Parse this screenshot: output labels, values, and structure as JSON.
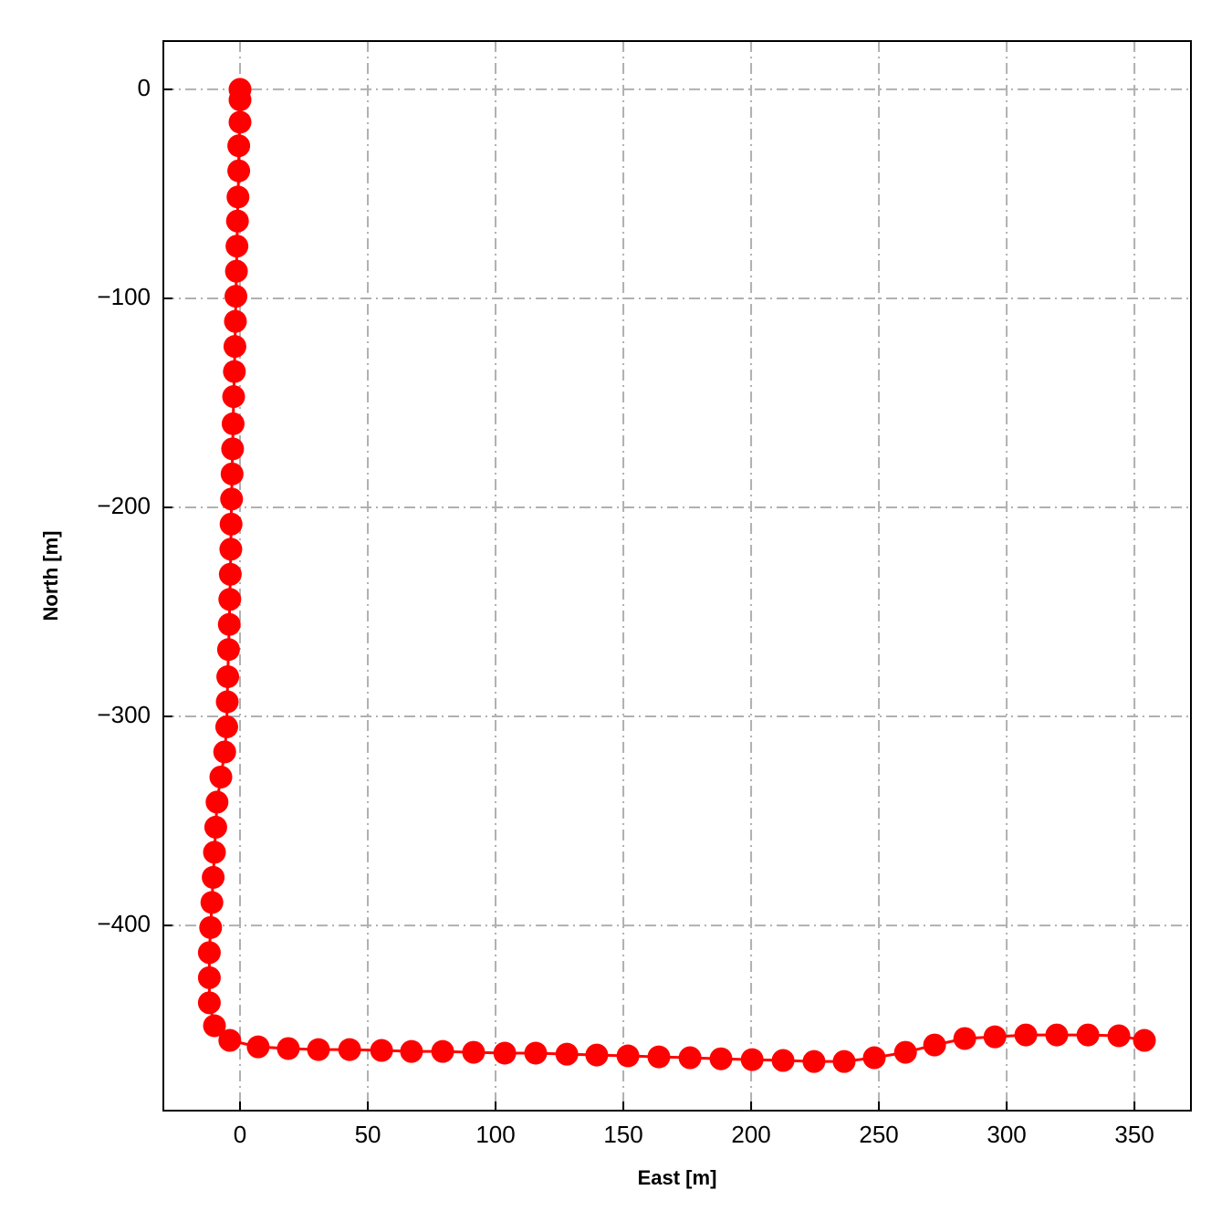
{
  "chart_data": {
    "type": "line",
    "xlabel": "East [m]",
    "ylabel": "North [m]",
    "color": "#ff0000",
    "markers": true,
    "grid": true,
    "x": [
      0,
      0,
      0,
      -0.5,
      -0.5,
      -0.8,
      -1,
      -1.2,
      -1.4,
      -1.6,
      -1.8,
      -2,
      -2.2,
      -2.5,
      -2.7,
      -2.9,
      -3.1,
      -3.3,
      -3.5,
      -3.6,
      -3.8,
      -4,
      -4.2,
      -4.5,
      -4.8,
      -5,
      -5.2,
      -6,
      -7.5,
      -9,
      -9.5,
      -10,
      -10.5,
      -11,
      -11.5,
      -12,
      -12,
      -12,
      -10,
      -4,
      7.1,
      18.9,
      30.7,
      42.9,
      55.4,
      67.1,
      79.3,
      91.4,
      103.6,
      115.7,
      127.9,
      139.6,
      151.8,
      163.9,
      176.1,
      188.2,
      200.4,
      212.5,
      224.6,
      236.4,
      248.2,
      260.4,
      271.8,
      283.6,
      295.4,
      307.5,
      319.6,
      331.8,
      343.9,
      353.9
    ],
    "values": [
      0,
      -5,
      -15.7,
      -27,
      -39,
      -51.5,
      -63,
      -75,
      -87,
      -99,
      -111,
      -123,
      -135,
      -147,
      -160,
      -172,
      -184,
      -196,
      -208,
      -220,
      -232,
      -244,
      -256,
      -268,
      -281,
      -293,
      -305,
      -317,
      -329,
      -341,
      -353,
      -365,
      -377,
      -389,
      -401,
      -413,
      -425,
      -437,
      -448,
      -455,
      -458.1,
      -458.9,
      -459.4,
      -459.4,
      -459.8,
      -460.3,
      -460.3,
      -460.7,
      -461.1,
      -461.1,
      -461.6,
      -462,
      -462.4,
      -462.9,
      -463.3,
      -463.8,
      -464.2,
      -464.6,
      -465.1,
      -465.1,
      -463.3,
      -460.7,
      -457.2,
      -454.1,
      -453.3,
      -452.4,
      -452.4,
      -452.4,
      -452.8,
      -455
    ],
    "xlim": [
      -30,
      372.1
    ],
    "ylim": [
      -488.6,
      23.1
    ],
    "xticks": [
      0,
      50,
      100,
      150,
      200,
      250,
      300,
      350
    ],
    "yticks": [
      0,
      {
        "value": -100,
        "label": "−100"
      },
      {
        "value": -200,
        "label": "−200"
      },
      {
        "value": -300,
        "label": "−300"
      },
      {
        "value": -400,
        "label": "−400"
      }
    ]
  }
}
